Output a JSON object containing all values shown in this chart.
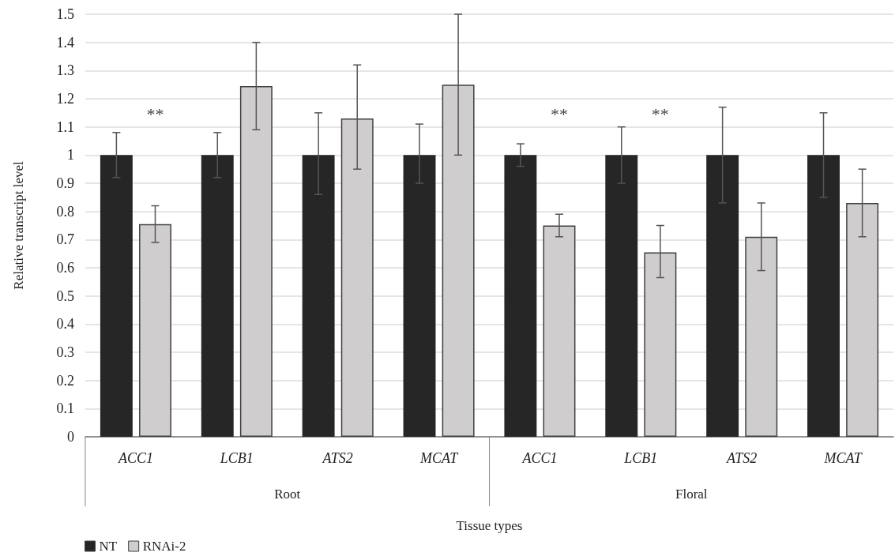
{
  "chart_data": {
    "type": "bar",
    "xlabel": "Tissue types",
    "ylabel": "Relative transcript level",
    "categories": [
      "ACC1",
      "LCB1",
      "ATS2",
      "MCAT",
      "ACC1",
      "LCB1",
      "ATS2",
      "MCAT"
    ],
    "series": [
      {
        "name": "NT",
        "color": "#262626",
        "values": [
          1,
          1,
          1,
          1,
          1,
          1,
          1,
          1
        ],
        "errors": [
          [
            0.92,
            1.08
          ],
          [
            0.92,
            1.08
          ],
          [
            0.86,
            1.15
          ],
          [
            0.9,
            1.11
          ],
          [
            0.96,
            1.04
          ],
          [
            0.9,
            1.1
          ],
          [
            0.83,
            1.17
          ],
          [
            0.85,
            1.15
          ]
        ]
      },
      {
        "name": "RNAi-2",
        "color": "#d0cdce",
        "values": [
          0.755,
          1.245,
          1.13,
          1.25,
          0.75,
          0.655,
          0.71,
          0.83
        ],
        "errors": [
          [
            0.69,
            0.82
          ],
          [
            1.09,
            1.4
          ],
          [
            0.95,
            1.32
          ],
          [
            1.0,
            1.5
          ],
          [
            0.71,
            0.79
          ],
          [
            0.565,
            0.75
          ],
          [
            0.59,
            0.83
          ],
          [
            0.71,
            0.95
          ]
        ]
      }
    ],
    "ylim": [
      0,
      1.5
    ],
    "yticks": [
      0,
      0.1,
      0.2,
      0.3,
      0.4,
      0.5,
      0.6,
      0.7,
      0.8,
      0.9,
      1,
      1.1,
      1.2,
      1.3,
      1.4,
      1.5
    ],
    "grid": "y",
    "legend": "bottom left",
    "annotations": [
      "**",
      "**",
      "**",
      "Root",
      "Floral"
    ]
  }
}
